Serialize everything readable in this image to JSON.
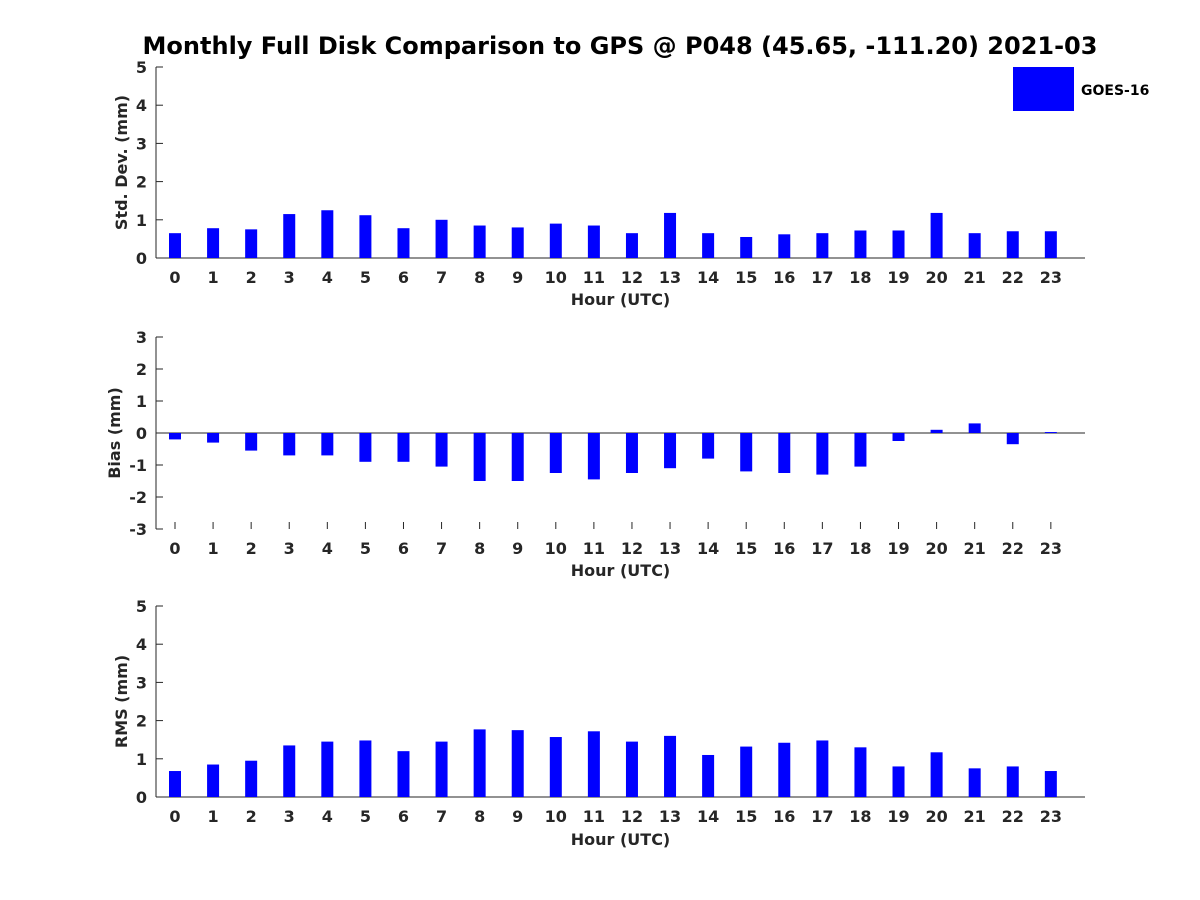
{
  "title": "Monthly Full Disk Comparison to GPS @ P048 (45.65, -111.20) 2021-03",
  "legend": {
    "label": "GOES-16",
    "color": "#0000ff"
  },
  "chart_data": [
    {
      "type": "bar",
      "xlabel": "Hour (UTC)",
      "ylabel": "Std. Dev. (mm)",
      "categories": [
        "0",
        "1",
        "2",
        "3",
        "4",
        "5",
        "6",
        "7",
        "8",
        "9",
        "10",
        "11",
        "12",
        "13",
        "14",
        "15",
        "16",
        "17",
        "18",
        "19",
        "20",
        "21",
        "22",
        "23"
      ],
      "ylim": [
        0,
        5
      ],
      "yticks": [
        0,
        1,
        2,
        3,
        4,
        5
      ],
      "series": [
        {
          "name": "GOES-16",
          "color": "#0000ff",
          "values": [
            0.65,
            0.78,
            0.75,
            1.15,
            1.25,
            1.12,
            0.78,
            1.0,
            0.85,
            0.8,
            0.9,
            0.85,
            0.65,
            1.18,
            0.65,
            0.55,
            0.62,
            0.65,
            0.72,
            0.72,
            1.18,
            0.65,
            0.7,
            0.7
          ]
        }
      ]
    },
    {
      "type": "bar",
      "xlabel": "Hour (UTC)",
      "ylabel": "Bias (mm)",
      "categories": [
        "0",
        "1",
        "2",
        "3",
        "4",
        "5",
        "6",
        "7",
        "8",
        "9",
        "10",
        "11",
        "12",
        "13",
        "14",
        "15",
        "16",
        "17",
        "18",
        "19",
        "20",
        "21",
        "22",
        "23"
      ],
      "ylim": [
        -3,
        3
      ],
      "yticks": [
        -3,
        -2,
        -1,
        0,
        1,
        2,
        3
      ],
      "series": [
        {
          "name": "GOES-16",
          "color": "#0000ff",
          "values": [
            -0.2,
            -0.3,
            -0.55,
            -0.7,
            -0.7,
            -0.9,
            -0.9,
            -1.05,
            -1.5,
            -1.5,
            -1.25,
            -1.45,
            -1.25,
            -1.1,
            -0.8,
            -1.2,
            -1.25,
            -1.3,
            -1.05,
            -0.25,
            0.1,
            0.3,
            -0.35,
            0.03
          ]
        }
      ]
    },
    {
      "type": "bar",
      "xlabel": "Hour (UTC)",
      "ylabel": "RMS (mm)",
      "categories": [
        "0",
        "1",
        "2",
        "3",
        "4",
        "5",
        "6",
        "7",
        "8",
        "9",
        "10",
        "11",
        "12",
        "13",
        "14",
        "15",
        "16",
        "17",
        "18",
        "19",
        "20",
        "21",
        "22",
        "23"
      ],
      "ylim": [
        0,
        5
      ],
      "yticks": [
        0,
        1,
        2,
        3,
        4,
        5
      ],
      "series": [
        {
          "name": "GOES-16",
          "color": "#0000ff",
          "values": [
            0.68,
            0.85,
            0.95,
            1.35,
            1.45,
            1.48,
            1.2,
            1.45,
            1.77,
            1.75,
            1.57,
            1.72,
            1.45,
            1.6,
            1.1,
            1.32,
            1.42,
            1.48,
            1.3,
            0.8,
            1.17,
            0.75,
            0.8,
            0.68
          ]
        }
      ]
    }
  ]
}
